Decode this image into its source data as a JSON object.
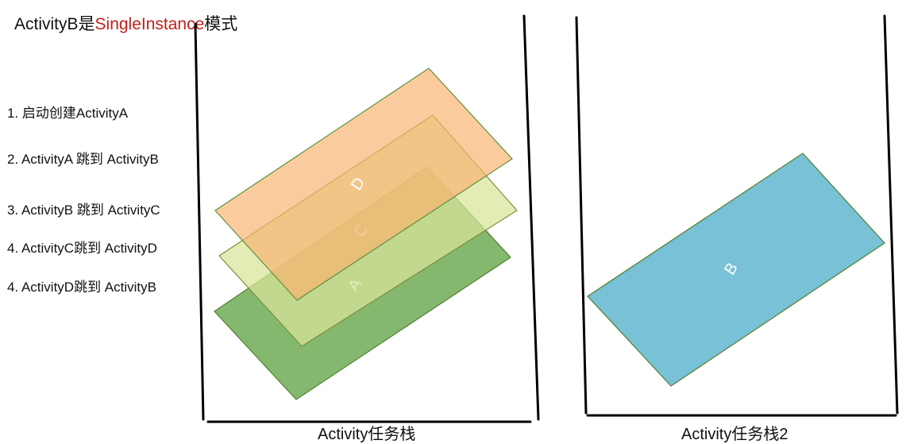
{
  "title": {
    "prefix": "ActivityB是",
    "highlight": "SingleInstance",
    "suffix": "模式",
    "highlight_color": "#c0201a"
  },
  "steps": [
    "1. 启动创建ActivityA",
    "2. ActivityA 跳到 ActivityB",
    "3. ActivityB 跳到 ActivityC",
    "4. ActivityC跳到 ActivityD",
    "4. ActivityD跳到 ActivityB"
  ],
  "stacks": [
    {
      "label": "Activity任务栈",
      "cards": [
        {
          "label": "A",
          "color": "#6aa84f"
        },
        {
          "label": "C",
          "color": "#d9e59a"
        },
        {
          "label": "D",
          "color": "#f9b26e"
        }
      ]
    },
    {
      "label": "Activity任务栈2",
      "cards": [
        {
          "label": "B",
          "color": "#78c1d6"
        }
      ]
    }
  ]
}
